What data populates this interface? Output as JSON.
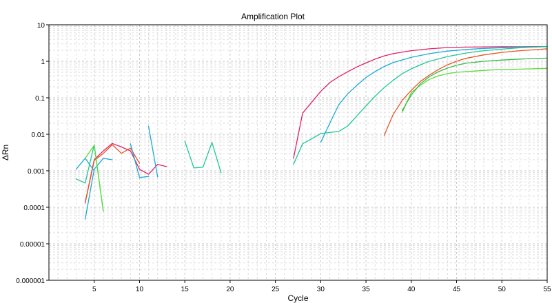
{
  "chart_data": {
    "type": "line",
    "title": "Amplification Plot",
    "xlabel": "Cycle",
    "ylabel": "ΔRn",
    "xlim": [
      0,
      55
    ],
    "ylim": [
      1e-06,
      10
    ],
    "yscale": "log",
    "grid": true,
    "x_ticks": [
      5,
      10,
      15,
      20,
      25,
      30,
      35,
      40,
      45,
      50,
      55
    ],
    "x_tick_labels": [
      "5",
      "10",
      "15",
      "20",
      "25",
      "30",
      "35",
      "40",
      "45",
      "50",
      "55"
    ],
    "y_ticks": [
      1e-06,
      1e-05,
      0.0001,
      0.001,
      0.01,
      0.1,
      1,
      10
    ],
    "y_tick_labels": [
      "0.000001",
      "0.00001",
      "0.0001",
      "0.001",
      "0.01",
      "0.1",
      "1",
      "10"
    ],
    "series": [
      {
        "color": "#e0206a",
        "segments": [
          [
            [
              4,
              0.000135
            ],
            [
              5,
              0.002
            ],
            [
              6,
              0.0035
            ],
            [
              7,
              0.0056
            ],
            [
              8,
              0.0045
            ],
            [
              9,
              0.0035
            ],
            [
              10,
              0.0011
            ],
            [
              11,
              0.0008
            ],
            [
              12,
              0.0015
            ],
            [
              13,
              0.0013
            ]
          ],
          [
            [
              27,
              0.0022
            ],
            [
              28,
              0.038
            ],
            [
              29,
              0.075
            ],
            [
              30,
              0.15
            ],
            [
              31,
              0.26
            ],
            [
              32,
              0.38
            ],
            [
              33,
              0.52
            ],
            [
              34,
              0.7
            ],
            [
              35,
              0.9
            ],
            [
              36,
              1.15
            ],
            [
              37,
              1.4
            ],
            [
              38,
              1.62
            ],
            [
              40,
              1.95
            ],
            [
              42,
              2.2
            ],
            [
              44,
              2.38
            ],
            [
              46,
              2.45
            ],
            [
              48,
              2.48
            ],
            [
              50,
              2.5
            ],
            [
              52,
              2.5
            ],
            [
              55,
              2.55
            ]
          ]
        ]
      },
      {
        "color": "#e8551e",
        "segments": [
          [
            [
              4,
              0.00013
            ],
            [
              5,
              0.0019
            ],
            [
              6,
              0.003
            ],
            [
              7,
              0.0052
            ],
            [
              8,
              0.003
            ],
            [
              9,
              0.0042
            ],
            [
              10,
              0.0016
            ]
          ],
          [
            [
              37,
              0.0093
            ],
            [
              38,
              0.035
            ],
            [
              39,
              0.085
            ],
            [
              40,
              0.16
            ],
            [
              41,
              0.28
            ],
            [
              42,
              0.42
            ],
            [
              43,
              0.6
            ],
            [
              44,
              0.8
            ],
            [
              45,
              1.0
            ],
            [
              46,
              1.2
            ],
            [
              48,
              1.5
            ],
            [
              50,
              1.75
            ],
            [
              52,
              1.95
            ],
            [
              55,
              2.2
            ]
          ]
        ]
      },
      {
        "color": "#1aaad4",
        "segments": [
          [
            [
              3,
              0.0011
            ],
            [
              4,
              0.0022
            ],
            [
              5,
              0.001
            ]
          ],
          [
            [
              4,
              4.7e-05
            ],
            [
              5,
              0.0011
            ],
            [
              6,
              0.0022
            ],
            [
              7,
              0.002
            ]
          ],
          [
            [
              9,
              0.0055
            ],
            [
              10,
              0.00065
            ],
            [
              11,
              0.0007
            ]
          ],
          [
            [
              11,
              0.0165
            ],
            [
              12,
              0.00068
            ]
          ],
          [
            [
              30,
              0.006
            ],
            [
              31,
              0.02
            ],
            [
              32,
              0.065
            ],
            [
              33,
              0.13
            ],
            [
              34,
              0.22
            ],
            [
              35,
              0.36
            ],
            [
              36,
              0.52
            ],
            [
              37,
              0.72
            ],
            [
              38,
              0.92
            ],
            [
              40,
              1.28
            ],
            [
              42,
              1.62
            ],
            [
              44,
              1.9
            ],
            [
              46,
              2.1
            ],
            [
              48,
              2.25
            ],
            [
              50,
              2.35
            ],
            [
              52,
              2.45
            ],
            [
              55,
              2.5
            ]
          ]
        ]
      },
      {
        "color": "#1ec79a",
        "segments": [
          [
            [
              3,
              0.0006
            ],
            [
              4,
              0.00046
            ],
            [
              5,
              0.0052
            ],
            [
              6,
              7.7e-05
            ]
          ],
          [
            [
              15,
              0.0065
            ],
            [
              16,
              0.0012
            ],
            [
              17,
              0.00125
            ],
            [
              18,
              0.006
            ],
            [
              19,
              0.00088
            ]
          ],
          [
            [
              27,
              0.0015
            ],
            [
              28,
              0.0055
            ],
            [
              29,
              0.0075
            ],
            [
              30,
              0.0105
            ],
            [
              31,
              0.0112
            ],
            [
              32,
              0.012
            ],
            [
              33,
              0.017
            ],
            [
              34,
              0.032
            ],
            [
              35,
              0.06
            ],
            [
              36,
              0.11
            ],
            [
              37,
              0.19
            ],
            [
              38,
              0.3
            ],
            [
              39,
              0.46
            ],
            [
              40,
              0.62
            ],
            [
              41,
              0.8
            ],
            [
              42,
              1.0
            ],
            [
              44,
              1.35
            ],
            [
              46,
              1.68
            ],
            [
              48,
              1.95
            ],
            [
              50,
              2.15
            ],
            [
              52,
              2.35
            ],
            [
              55,
              2.55
            ]
          ]
        ]
      },
      {
        "color": "#5ddb3a",
        "segments": [
          [
            [
              4,
              0.0022
            ],
            [
              5,
              0.005
            ],
            [
              6,
              7.7e-05
            ]
          ],
          [
            [
              39,
              0.04
            ],
            [
              40,
              0.14
            ],
            [
              41,
              0.22
            ],
            [
              42,
              0.32
            ],
            [
              43,
              0.4
            ],
            [
              44,
              0.46
            ],
            [
              45,
              0.5
            ],
            [
              47,
              0.54
            ],
            [
              49,
              0.58
            ],
            [
              51,
              0.6
            ],
            [
              53,
              0.62
            ],
            [
              55,
              0.64
            ]
          ]
        ]
      },
      {
        "color": "#3cb84a",
        "segments": [
          [
            [
              39,
              0.045
            ],
            [
              40,
              0.12
            ],
            [
              41,
              0.24
            ],
            [
              42,
              0.38
            ],
            [
              43,
              0.52
            ],
            [
              44,
              0.65
            ],
            [
              45,
              0.78
            ],
            [
              46,
              0.88
            ],
            [
              48,
              1.0
            ],
            [
              50,
              1.08
            ],
            [
              52,
              1.15
            ],
            [
              55,
              1.22
            ]
          ]
        ]
      }
    ]
  }
}
